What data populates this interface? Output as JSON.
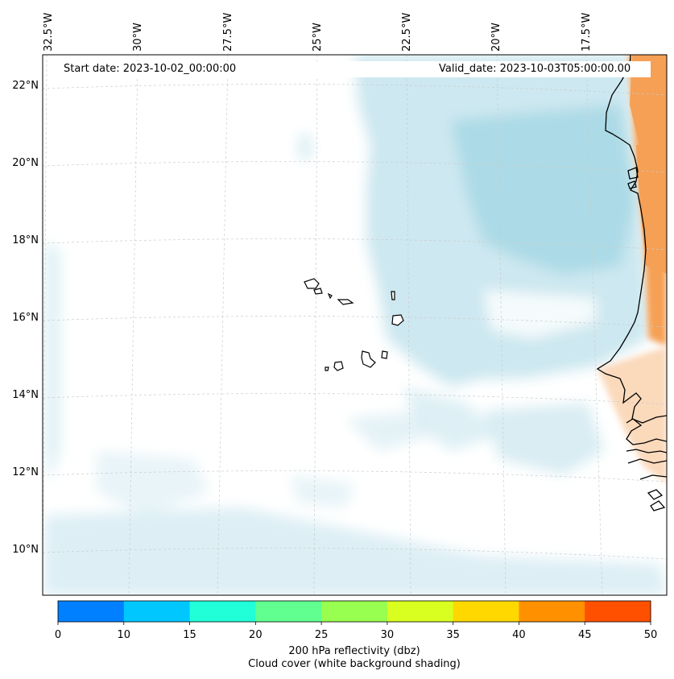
{
  "map": {
    "header": {
      "start_date": "Start date: 2023-10-02_00:00:00",
      "valid_date": "Valid_date: 2023-10-03T05:00:00.00"
    },
    "longitude_labels": [
      "32.5°W",
      "30°W",
      "27.5°W",
      "25°W",
      "22.5°W",
      "20°W",
      "17.5°W"
    ],
    "latitude_labels": [
      "22°N",
      "20°N",
      "18°N",
      "16°N",
      "14°N",
      "12°N",
      "10°N"
    ],
    "colors": {
      "cloud_cover": "#a9d8e6",
      "land_shading": "#f5a055",
      "coastline": "#000000",
      "gridline": "#cccccc"
    }
  },
  "colorbar": {
    "ticks": [
      "0",
      "10",
      "15",
      "20",
      "25",
      "30",
      "35",
      "40",
      "45",
      "50"
    ],
    "colors": [
      "#0080ff",
      "#00c8ff",
      "#20ffd8",
      "#60ff90",
      "#98ff50",
      "#d8ff20",
      "#ffd800",
      "#ff9000",
      "#ff5000"
    ],
    "title_line1": "200 hPa reflectivity (dbz)",
    "title_line2": "Cloud cover (white background shading)"
  }
}
